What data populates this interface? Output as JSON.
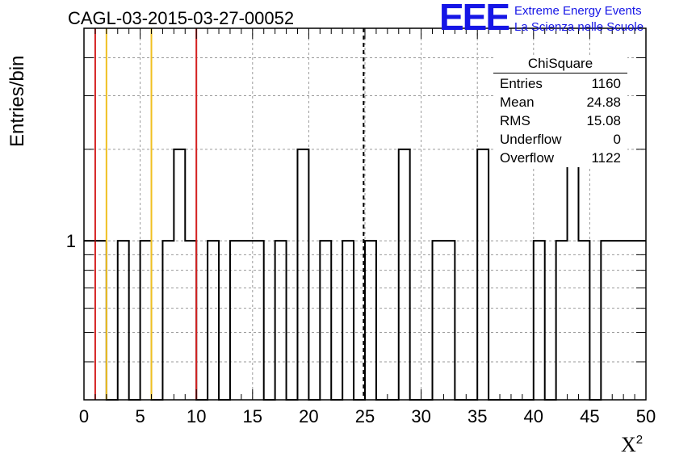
{
  "chart_data": {
    "type": "bar",
    "title": "CAGL-03-2015-03-27-00052",
    "xlabel": "X",
    "xlabel_superscript": "2",
    "ylabel": "Entries/bin",
    "xlim": [
      0,
      50
    ],
    "ylim": [
      0.3,
      5
    ],
    "log_y": true,
    "grid": true,
    "bin_width": 1,
    "x_ticks": [
      "0",
      "5",
      "10",
      "15",
      "20",
      "25",
      "30",
      "35",
      "40",
      "45",
      "50"
    ],
    "y_ticks": [
      "1"
    ],
    "bins_x": [
      0.5,
      1.5,
      3.5,
      5.5,
      7.5,
      8.5,
      9.5,
      11.5,
      13.5,
      14.5,
      15.5,
      17.5,
      19.5,
      21.5,
      23.5,
      25.5,
      28.5,
      31.5,
      32.5,
      35.5,
      40.5,
      42.5,
      43.5,
      44.5,
      46.5,
      47.5,
      48.5,
      49.5
    ],
    "bins_count": [
      1,
      1,
      1,
      1,
      1,
      2,
      1,
      1,
      1,
      1,
      1,
      1,
      2,
      1,
      1,
      1,
      2,
      1,
      1,
      2,
      1,
      1,
      2,
      1,
      1,
      1,
      1,
      1
    ],
    "reference_lines": [
      {
        "x": 1,
        "color": "#d42020",
        "style": "solid"
      },
      {
        "x": 2,
        "color": "#f0c020",
        "style": "solid"
      },
      {
        "x": 6,
        "color": "#f0c020",
        "style": "solid"
      },
      {
        "x": 10,
        "color": "#d42020",
        "style": "solid"
      },
      {
        "x": 24.88,
        "color": "#000000",
        "style": "dashed"
      }
    ],
    "stats_box": {
      "title": "ChiSquare",
      "rows": [
        {
          "label": "Entries",
          "value": "1160"
        },
        {
          "label": "Mean",
          "value": "24.88"
        },
        {
          "label": "RMS",
          "value": "15.08"
        },
        {
          "label": "Underflow",
          "value": "0"
        },
        {
          "label": "Overflow",
          "value": "1122"
        }
      ]
    }
  },
  "logo": {
    "mark": "EEE",
    "line1": "Extreme Energy Events",
    "line2": "La Scienza nelle Scuole",
    "color": "#1515e6"
  }
}
